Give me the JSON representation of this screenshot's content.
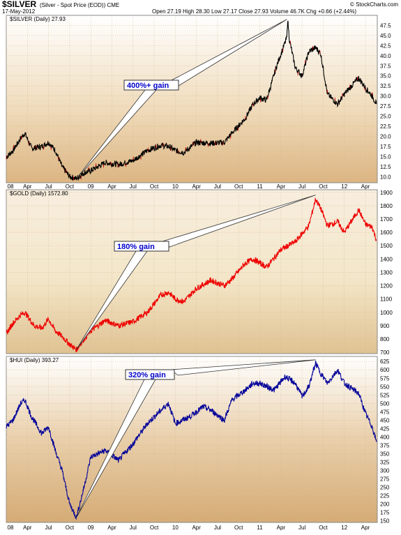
{
  "header": {
    "symbol": "$SILVER",
    "description": "(Silver - Spot Price (EOD)) CME",
    "date": "17-May-2012",
    "ohlc": "Open 27.19  High 28.30  Low 27.17  Close 27.93  Volume 46.7K  Chg +0.66 (+2.44%)",
    "watermark": "© StockCharts.com"
  },
  "x_axis_labels": [
    "08",
    "Apr",
    "Jul",
    "Oct",
    "09",
    "Apr",
    "Jul",
    "Oct",
    "10",
    "Apr",
    "Jul",
    "Oct",
    "11",
    "Apr",
    "Jul",
    "Oct",
    "12",
    "Apr"
  ],
  "chart_data": [
    {
      "type": "line",
      "label": "$SILVER (Daily) 27.93",
      "color": "#000000",
      "spike_color": "#cc0000",
      "ylim": [
        8.5,
        50
      ],
      "yticks": [
        10.0,
        12.5,
        15.0,
        17.5,
        20.0,
        22.5,
        25.0,
        27.5,
        30.0,
        32.5,
        35.0,
        37.5,
        40.0,
        42.5,
        45.0,
        47.5,
        50.0
      ],
      "x": [
        2008.0,
        2008.08,
        2008.17,
        2008.22,
        2008.3,
        2008.42,
        2008.5,
        2008.58,
        2008.66,
        2008.75,
        2008.83,
        2008.92,
        2009.0,
        2009.17,
        2009.33,
        2009.5,
        2009.67,
        2009.83,
        2009.92,
        2010.0,
        2010.1,
        2010.25,
        2010.42,
        2010.58,
        2010.67,
        2010.83,
        2010.92,
        2011.0,
        2011.08,
        2011.2,
        2011.32,
        2011.33,
        2011.35,
        2011.42,
        2011.5,
        2011.58,
        2011.66,
        2011.72,
        2011.8,
        2011.92,
        2012.0,
        2012.17,
        2012.25,
        2012.33,
        2012.38
      ],
      "values": [
        14.8,
        16.5,
        19.5,
        20.8,
        17.0,
        17.5,
        18.5,
        16.5,
        12.5,
        10.0,
        9.5,
        11.0,
        11.5,
        13.5,
        13.0,
        14.0,
        16.5,
        17.8,
        17.5,
        16.5,
        16.0,
        18.5,
        18.3,
        18.5,
        20.8,
        24.5,
        28.0,
        29.5,
        29.0,
        37.5,
        44.5,
        49.0,
        44.0,
        37.0,
        35.0,
        41.0,
        42.0,
        40.5,
        30.5,
        28.0,
        30.5,
        34.5,
        32.0,
        30.0,
        28.0
      ],
      "annotations": [
        {
          "text": "400%+ gain",
          "from": [
            2008.83,
            9.5
          ],
          "to": [
            2011.32,
            49.0
          ]
        }
      ]
    },
    {
      "type": "line",
      "label": "$GOLD (Daily) 1572.80",
      "color": "#ee0000",
      "ylim": [
        690,
        1920
      ],
      "yticks": [
        700,
        800,
        900,
        1000,
        1100,
        1200,
        1300,
        1400,
        1500,
        1600,
        1700,
        1800,
        1900
      ],
      "x": [
        2008.0,
        2008.08,
        2008.17,
        2008.22,
        2008.33,
        2008.42,
        2008.5,
        2008.58,
        2008.66,
        2008.75,
        2008.83,
        2008.92,
        2009.0,
        2009.17,
        2009.33,
        2009.5,
        2009.67,
        2009.83,
        2009.92,
        2010.0,
        2010.1,
        2010.25,
        2010.42,
        2010.58,
        2010.67,
        2010.83,
        2010.92,
        2011.0,
        2011.08,
        2011.25,
        2011.42,
        2011.58,
        2011.66,
        2011.72,
        2011.8,
        2011.92,
        2012.0,
        2012.17,
        2012.25,
        2012.33,
        2012.38
      ],
      "values": [
        840,
        920,
        980,
        1000,
        900,
        880,
        950,
        860,
        820,
        760,
        720,
        800,
        860,
        940,
        900,
        930,
        1000,
        1130,
        1150,
        1100,
        1080,
        1180,
        1240,
        1200,
        1250,
        1370,
        1400,
        1370,
        1340,
        1470,
        1530,
        1650,
        1850,
        1780,
        1650,
        1680,
        1600,
        1770,
        1660,
        1640,
        1540
      ],
      "annotations": [
        {
          "text": "180% gain",
          "from": [
            2008.83,
            720
          ],
          "to": [
            2011.66,
            1880
          ]
        }
      ]
    },
    {
      "type": "line",
      "label": "$HUI (Daily) 393.27",
      "color": "#000099",
      "ylim": [
        145,
        640
      ],
      "yticks": [
        150,
        175,
        200,
        225,
        250,
        275,
        300,
        325,
        350,
        375,
        400,
        425,
        450,
        475,
        500,
        525,
        550,
        575,
        600,
        625
      ],
      "x": [
        2008.0,
        2008.08,
        2008.17,
        2008.22,
        2008.3,
        2008.42,
        2008.5,
        2008.58,
        2008.66,
        2008.75,
        2008.83,
        2008.92,
        2009.0,
        2009.17,
        2009.33,
        2009.5,
        2009.67,
        2009.83,
        2009.92,
        2010.0,
        2010.17,
        2010.33,
        2010.42,
        2010.58,
        2010.67,
        2010.83,
        2010.92,
        2011.0,
        2011.17,
        2011.3,
        2011.42,
        2011.5,
        2011.58,
        2011.66,
        2011.72,
        2011.8,
        2011.92,
        2012.0,
        2012.17,
        2012.25,
        2012.33,
        2012.38
      ],
      "values": [
        430,
        450,
        500,
        510,
        460,
        410,
        430,
        360,
        300,
        200,
        160,
        250,
        340,
        360,
        330,
        380,
        440,
        480,
        500,
        440,
        460,
        490,
        480,
        450,
        510,
        540,
        560,
        560,
        540,
        580,
        560,
        520,
        550,
        620,
        590,
        560,
        600,
        560,
        530,
        470,
        430,
        385
      ],
      "annotations": [
        {
          "text": "320% gain",
          "from": [
            2008.83,
            160
          ],
          "to": [
            2011.66,
            630
          ]
        }
      ]
    }
  ]
}
